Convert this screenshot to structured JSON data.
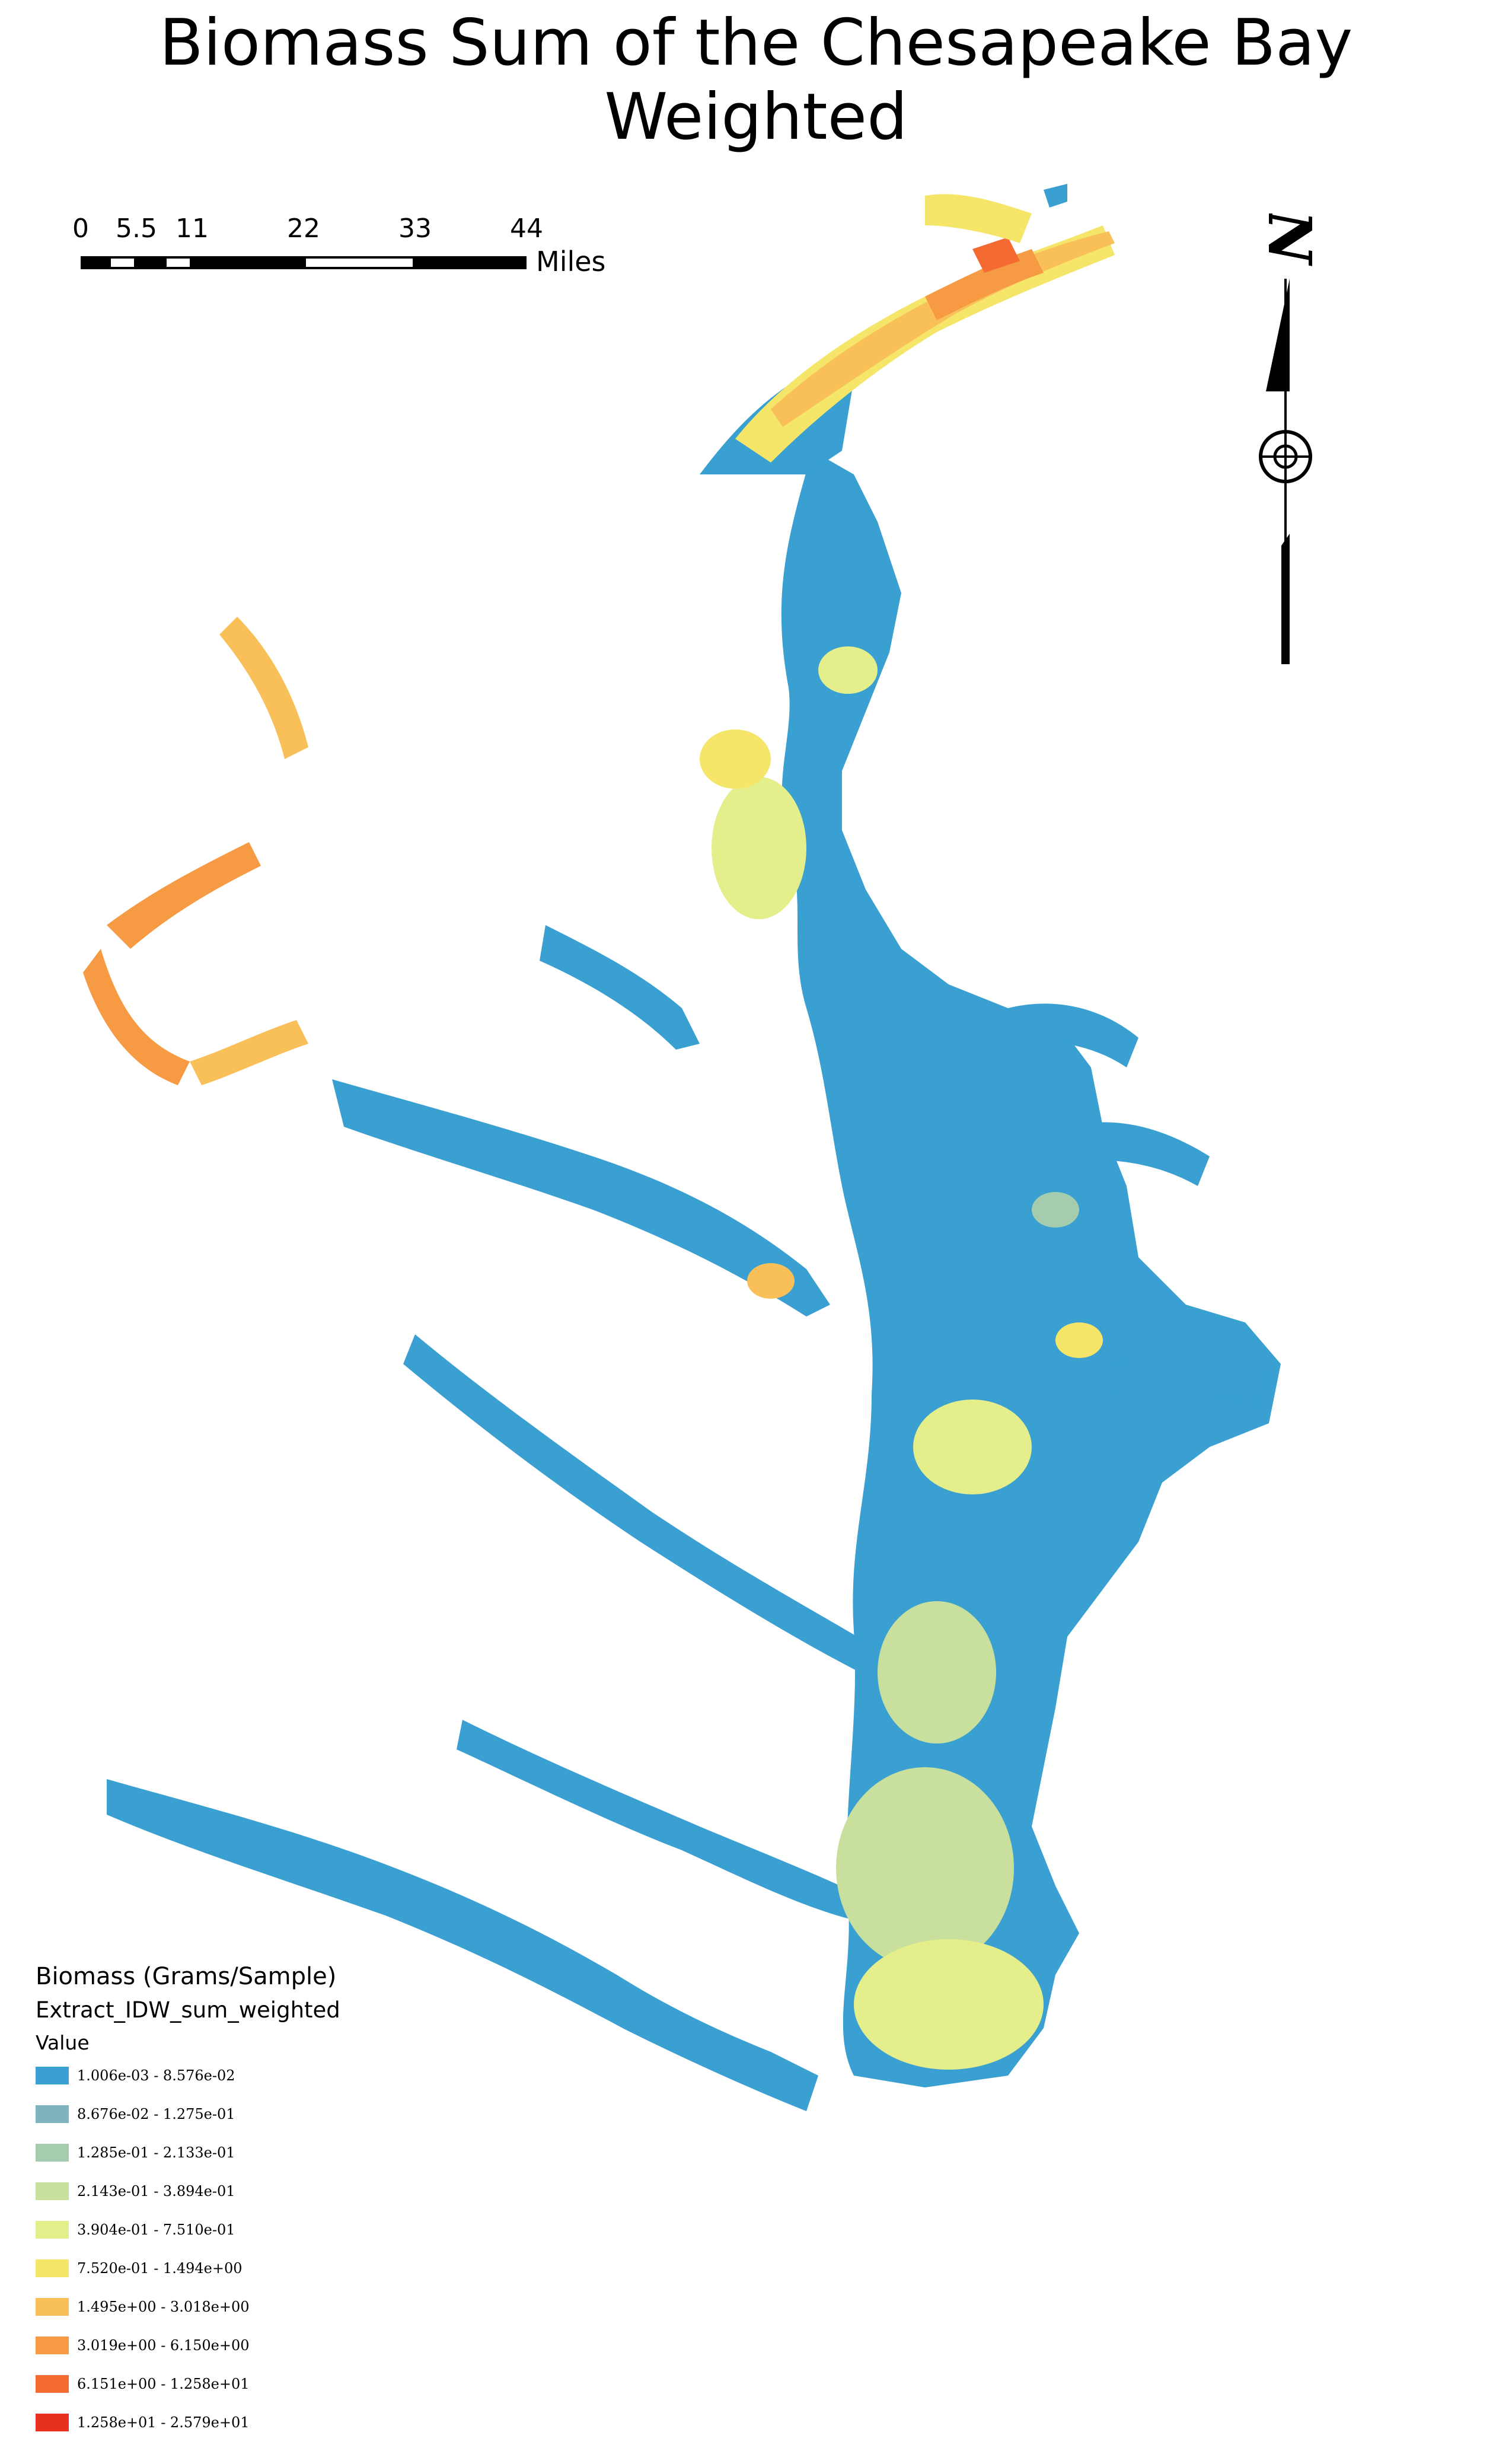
{
  "title": "Biomass Sum of the Chesapeake Bay Weighted",
  "scale_bar": {
    "ticks": [
      "0",
      "5.5",
      "11",
      "22",
      "33",
      "44"
    ],
    "tick_values": [
      0,
      5.5,
      11,
      22,
      33,
      44
    ],
    "unit": "Miles"
  },
  "north_arrow": {
    "letter": "N"
  },
  "legend": {
    "title": "Biomass (Grams/Sample)",
    "layer": "Extract_IDW_sum_weighted",
    "field": "Value",
    "classes": [
      {
        "label": "1.006e-03 - 8.576e-02",
        "color": "#3aa0d2"
      },
      {
        "label": "8.676e-02 - 1.275e-01",
        "color": "#7fb3bd"
      },
      {
        "label": "1.285e-01 - 2.133e-01",
        "color": "#a6ccb0"
      },
      {
        "label": "2.143e-01 - 3.894e-01",
        "color": "#c9df9e"
      },
      {
        "label": "3.904e-01 - 7.510e-01",
        "color": "#e4ee8a"
      },
      {
        "label": "7.520e-01 - 1.494e+00",
        "color": "#f5e66a"
      },
      {
        "label": "1.495e+00 - 3.018e+00",
        "color": "#f9c059"
      },
      {
        "label": "3.019e+00 - 6.150e+00",
        "color": "#f79a44"
      },
      {
        "label": "6.151e+00 - 1.258e+01",
        "color": "#f46a31"
      },
      {
        "label": "1.258e+01 - 2.579e+01",
        "color": "#e8301f"
      }
    ]
  }
}
